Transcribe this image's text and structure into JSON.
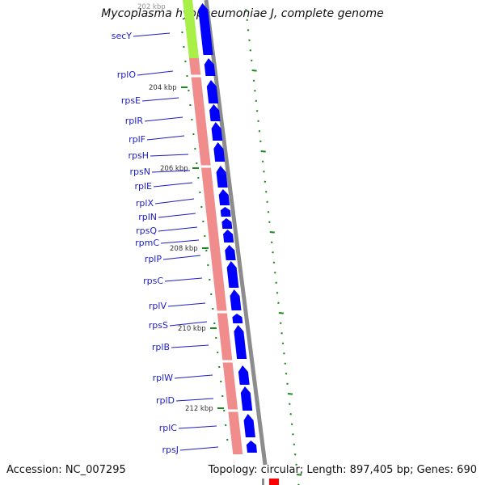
{
  "title": "Mycoplasma hyopneumoniae J, complete genome",
  "accession": "Accession: NC_007295",
  "summary": "Topology: circular; Length: 897,405 bp; Genes: 690",
  "top_kbp_label": "202 kbp",
  "colors": {
    "gene_label": "#1c1cc8",
    "gene_arrow": "#0000ff",
    "track_pink": "#f08c8c",
    "track_green": "#a8f048",
    "backbone": "#8c8c8c",
    "tick": "#1a8a1a",
    "red_mark": "#ff0000"
  },
  "genes": [
    "secY",
    "rplO",
    "rpsE",
    "rplR",
    "rplF",
    "rpsH",
    "rpsN",
    "rplE",
    "rplX",
    "rplN",
    "rpsQ",
    "rpmC",
    "rplP",
    "rpsC",
    "rplV",
    "rpsS",
    "rplB",
    "rplW",
    "rplD",
    "rplC",
    "rpsJ"
  ],
  "kbp_labels": [
    "204 kbp",
    "206 kbp",
    "208 kbp",
    "210 kbp",
    "212 kbp"
  ]
}
